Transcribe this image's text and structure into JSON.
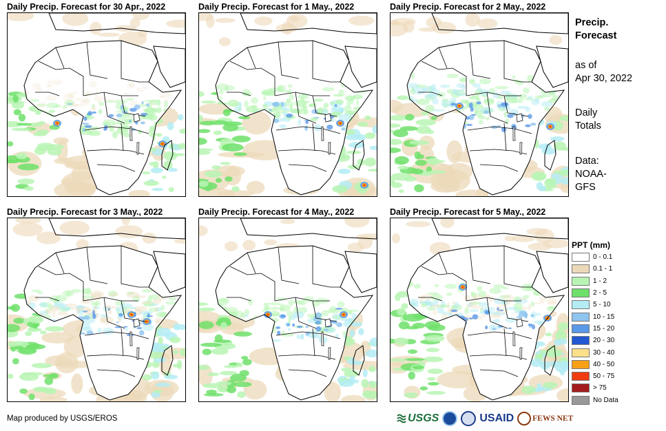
{
  "panels": [
    {
      "title": "Daily Precip. Forecast for 30 Apr., 2022"
    },
    {
      "title": "Daily Precip. Forecast for 1 May., 2022"
    },
    {
      "title": "Daily Precip. Forecast for 2 May., 2022"
    },
    {
      "title": "Daily Precip. Forecast for 3 May., 2022"
    },
    {
      "title": "Daily Precip. Forecast for 4 May., 2022"
    },
    {
      "title": "Daily Precip. Forecast for 5 May., 2022"
    }
  ],
  "sidebar": {
    "title_line1": "Precip.",
    "title_line2": "Forecast",
    "asof_line1": "as of",
    "asof_line2": "Apr 30, 2022",
    "totals_line1": "Daily",
    "totals_line2": "Totals",
    "data_line1": "Data:",
    "data_line2": "NOAA-",
    "data_line3": "GFS"
  },
  "legend": {
    "title": "PPT (mm)",
    "items": [
      {
        "label": "0 - 0.1",
        "color": "#ffffff"
      },
      {
        "label": "0.1 - 1",
        "color": "#ecd9b9"
      },
      {
        "label": "1 - 2",
        "color": "#b8f5b4"
      },
      {
        "label": "2 - 5",
        "color": "#6ee06a"
      },
      {
        "label": "5 - 10",
        "color": "#b4ecf4"
      },
      {
        "label": "10 - 15",
        "color": "#8ec4f0"
      },
      {
        "label": "15 - 20",
        "color": "#5a98e8"
      },
      {
        "label": "20 - 30",
        "color": "#2258d0"
      },
      {
        "label": "30 - 40",
        "color": "#fce08a"
      },
      {
        "label": "40 - 50",
        "color": "#f8a018"
      },
      {
        "label": "50 - 75",
        "color": "#f03e10"
      },
      {
        "label": "> 75",
        "color": "#a41c1c"
      },
      {
        "label": "No Data",
        "color": "#999999"
      }
    ]
  },
  "credit": "Map produced by USGS/EROS",
  "logos": {
    "usgs": "USGS",
    "usaid": "USAID",
    "fews": "FEWS NET"
  }
}
